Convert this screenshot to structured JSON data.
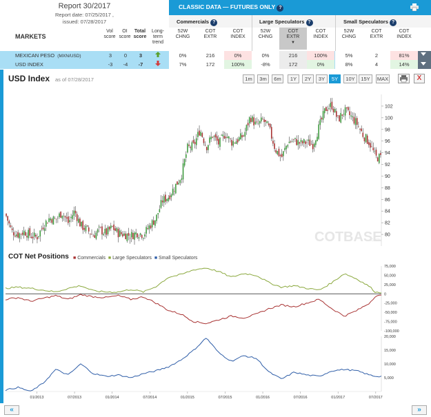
{
  "report": {
    "title": "Report 30/2017",
    "report_date": "Report date: 07/25/2017 ,",
    "issued": "issued: 07/28/2017"
  },
  "markets_header": {
    "label": "MARKETS",
    "vol_score": [
      "Vol",
      "score"
    ],
    "oi_score": [
      "OI",
      "score"
    ],
    "total_score": [
      "Total",
      "score"
    ],
    "trend": [
      "Long-",
      "term",
      "trend"
    ]
  },
  "classic": {
    "title": "CLASSIC DATA — FUTURES ONLY",
    "groups": [
      "Commercials",
      "Large Speculators",
      "Small Speculators"
    ],
    "subcols": [
      [
        "52W",
        "CHNG"
      ],
      [
        "COT",
        "EXTR"
      ],
      [
        "COT",
        "INDEX"
      ]
    ]
  },
  "markets": [
    {
      "name": "MEXICAN PESO",
      "code": "(MXN/USD)",
      "vol": "3",
      "oi": "0",
      "total": "3",
      "trend": "up",
      "comm": [
        "0%",
        "216",
        "0%"
      ],
      "large": [
        "0%",
        "216",
        "100%"
      ],
      "small": [
        "5%",
        "2",
        "81%"
      ]
    },
    {
      "name": "USD INDEX",
      "code": "",
      "vol": "-3",
      "oi": "-4",
      "total": "-7",
      "trend": "down",
      "comm": [
        "7%",
        "172",
        "100%"
      ],
      "large": [
        "-8%",
        "172",
        "0%"
      ],
      "small": [
        "8%",
        "4",
        "14%"
      ]
    }
  ],
  "colors": {
    "accent": "#1a9ad6",
    "selected_row": "#a9def5",
    "commercials": "#a83232",
    "large_speculators": "#8aa83d",
    "small_speculators": "#2f5ea8",
    "up": "#5aa02c",
    "down": "#d23b3b"
  },
  "chart_header": {
    "title": "USD Index",
    "as_of": "as of 07/28/2017",
    "ranges": [
      "1m",
      "3m",
      "6m",
      "1Y",
      "2Y",
      "3Y",
      "5Y",
      "10Y",
      "15Y",
      "MAX"
    ],
    "active_range": "5Y"
  },
  "watermark": {
    "main": "COT",
    "sub": "BASE",
    "suffix": ".com"
  },
  "cot_header": {
    "title": "COT Net Positions",
    "legend": [
      "Commercials",
      "Large Speculators",
      "Small Speculators"
    ]
  },
  "chart_data": [
    {
      "type": "candlestick",
      "title": "USD Index",
      "ylim": [
        78,
        104
      ],
      "yticks": [
        80,
        82,
        84,
        86,
        88,
        90,
        92,
        94,
        96,
        98,
        100,
        102
      ],
      "x_range": [
        "2012-08",
        "2017-07"
      ],
      "close_path": [
        [
          "2012-08",
          83.5
        ],
        [
          "2012-09",
          80.5
        ],
        [
          "2012-10",
          80.0
        ],
        [
          "2012-11",
          80.5
        ],
        [
          "2012-12",
          79.8
        ],
        [
          "2013-01",
          79.5
        ],
        [
          "2013-02",
          81.5
        ],
        [
          "2013-03",
          82.8
        ],
        [
          "2013-04",
          82.5
        ],
        [
          "2013-05",
          83.8
        ],
        [
          "2013-06",
          82.0
        ],
        [
          "2013-07",
          84.0
        ],
        [
          "2013-08",
          81.5
        ],
        [
          "2013-09",
          80.8
        ],
        [
          "2013-10",
          79.8
        ],
        [
          "2013-11",
          80.8
        ],
        [
          "2013-12",
          80.2
        ],
        [
          "2014-01",
          81.2
        ],
        [
          "2014-02",
          80.2
        ],
        [
          "2014-03",
          80.0
        ],
        [
          "2014-04",
          79.8
        ],
        [
          "2014-05",
          80.3
        ],
        [
          "2014-06",
          80.0
        ],
        [
          "2014-07",
          81.5
        ],
        [
          "2014-08",
          82.8
        ],
        [
          "2014-09",
          85.8
        ],
        [
          "2014-10",
          86.5
        ],
        [
          "2014-11",
          88.2
        ],
        [
          "2014-12",
          90.0
        ],
        [
          "2015-01",
          94.8
        ],
        [
          "2015-02",
          95.2
        ],
        [
          "2015-03",
          98.0
        ],
        [
          "2015-04",
          95.0
        ],
        [
          "2015-05",
          97.0
        ],
        [
          "2015-06",
          95.5
        ],
        [
          "2015-07",
          97.3
        ],
        [
          "2015-08",
          95.8
        ],
        [
          "2015-09",
          96.2
        ],
        [
          "2015-10",
          97.0
        ],
        [
          "2015-11",
          100.2
        ],
        [
          "2015-12",
          98.6
        ],
        [
          "2016-01",
          99.6
        ],
        [
          "2016-02",
          98.2
        ],
        [
          "2016-03",
          94.6
        ],
        [
          "2016-04",
          93.2
        ],
        [
          "2016-05",
          95.8
        ],
        [
          "2016-06",
          96.1
        ],
        [
          "2016-07",
          95.6
        ],
        [
          "2016-08",
          95.8
        ],
        [
          "2016-09",
          95.4
        ],
        [
          "2016-10",
          98.5
        ],
        [
          "2016-11",
          101.5
        ],
        [
          "2016-12",
          102.2
        ],
        [
          "2017-01",
          99.6
        ],
        [
          "2017-02",
          101.2
        ],
        [
          "2017-03",
          100.3
        ],
        [
          "2017-04",
          99.0
        ],
        [
          "2017-05",
          97.0
        ],
        [
          "2017-06",
          95.7
        ],
        [
          "2017-07",
          93.2
        ]
      ]
    },
    {
      "type": "line",
      "title": "COT Net Positions",
      "ylim": [
        -100000,
        75000
      ],
      "yticks": [
        75000,
        50000,
        25000,
        0,
        -25000,
        -50000,
        -75000,
        -100000
      ],
      "ytick_labels": [
        "75,000",
        "50,000",
        "25,000",
        "0",
        "-25,000",
        "-50,000",
        "-75,000",
        "-100,000"
      ],
      "x": [
        "2012-08",
        "2012-10",
        "2012-12",
        "2013-02",
        "2013-04",
        "2013-06",
        "2013-08",
        "2013-10",
        "2013-12",
        "2014-02",
        "2014-04",
        "2014-06",
        "2014-08",
        "2014-10",
        "2014-12",
        "2015-02",
        "2015-04",
        "2015-06",
        "2015-08",
        "2015-10",
        "2015-12",
        "2016-02",
        "2016-04",
        "2016-06",
        "2016-08",
        "2016-10",
        "2016-12",
        "2017-02",
        "2017-04",
        "2017-06",
        "2017-07"
      ],
      "series": [
        {
          "name": "Commercials",
          "values": [
            -15000,
            -10000,
            -20000,
            -12000,
            -5000,
            -15000,
            -2000,
            -8000,
            -10000,
            -5000,
            -15000,
            -8000,
            -25000,
            -45000,
            -55000,
            -75000,
            -80000,
            -70000,
            -60000,
            -65000,
            -55000,
            -40000,
            -30000,
            -35000,
            -25000,
            -15000,
            -40000,
            -60000,
            -45000,
            -25000,
            -5000
          ]
        },
        {
          "name": "Large Speculators",
          "values": [
            15000,
            18000,
            15000,
            10000,
            5000,
            15000,
            22000,
            8000,
            5000,
            5000,
            12000,
            5000,
            20000,
            45000,
            52000,
            65000,
            70000,
            60000,
            45000,
            55000,
            50000,
            30000,
            18000,
            22000,
            15000,
            10000,
            30000,
            55000,
            40000,
            20000,
            4000
          ]
        }
      ]
    },
    {
      "type": "line",
      "title": "Small Speculators",
      "ylim": [
        0,
        20000
      ],
      "yticks": [
        20000,
        15000,
        10000,
        5000
      ],
      "ytick_labels": [
        "20,000",
        "15,000",
        "10,000",
        "5,000"
      ],
      "xtick_labels": [
        "01/2013",
        "07/2013",
        "01/2014",
        "07/2014",
        "01/2015",
        "07/2015",
        "01/2016",
        "07/2016",
        "01/2017",
        "07/2017"
      ],
      "x": [
        "2012-08",
        "2012-10",
        "2012-12",
        "2013-02",
        "2013-04",
        "2013-06",
        "2013-08",
        "2013-10",
        "2013-12",
        "2014-02",
        "2014-04",
        "2014-06",
        "2014-08",
        "2014-10",
        "2014-12",
        "2015-02",
        "2015-04",
        "2015-06",
        "2015-08",
        "2015-10",
        "2015-12",
        "2016-02",
        "2016-04",
        "2016-06",
        "2016-08",
        "2016-10",
        "2016-12",
        "2017-02",
        "2017-04",
        "2017-06",
        "2017-07"
      ],
      "series": [
        {
          "name": "Small Speculators",
          "values": [
            500,
            1500,
            0,
            3000,
            8000,
            6000,
            10000,
            6500,
            5500,
            6000,
            5000,
            6500,
            7500,
            9000,
            11500,
            15000,
            19500,
            14000,
            11000,
            13000,
            12000,
            7000,
            4500,
            7000,
            6000,
            5500,
            7500,
            8000,
            7500,
            6000,
            5500
          ]
        }
      ]
    }
  ]
}
